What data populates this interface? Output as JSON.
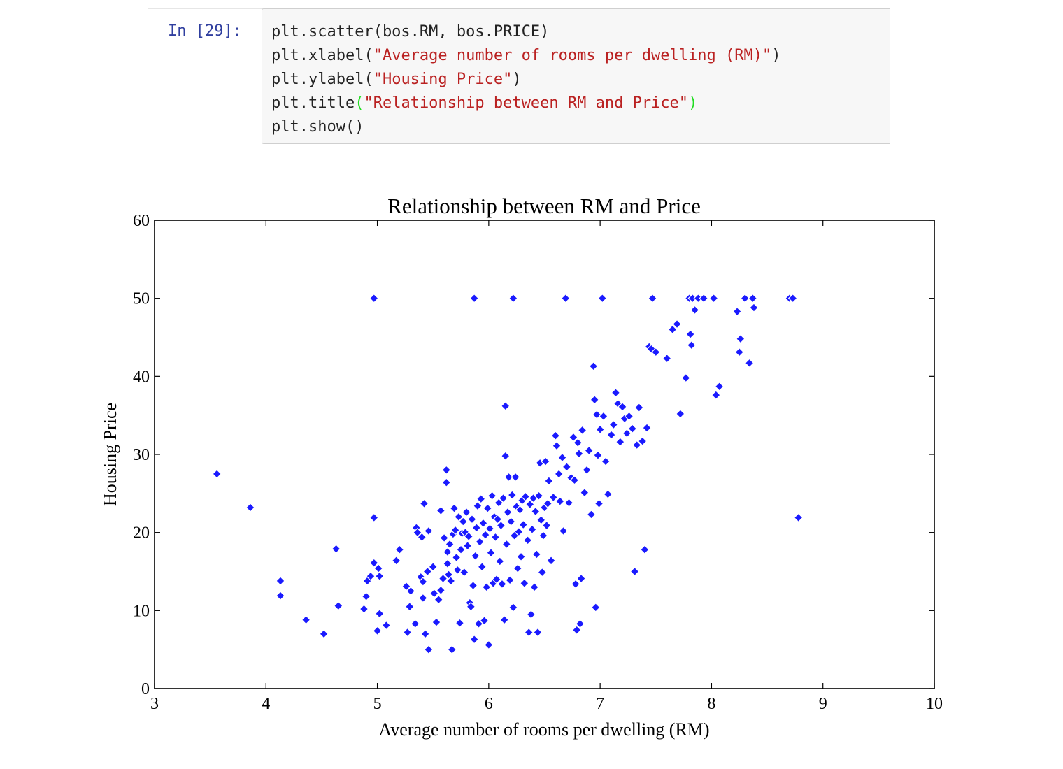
{
  "cell": {
    "prompt": "In [29]:",
    "lines": [
      {
        "plain": "plt.scatter(bos.RM, bos.PRICE)"
      },
      {
        "pre": "plt.xlabel(",
        "str": "\"Average number of rooms per dwelling (RM)\"",
        "post": ")"
      },
      {
        "pre": "plt.ylabel(",
        "str": "\"Housing Price\"",
        "post": ")"
      },
      {
        "pre": "plt.title",
        "open": "(",
        "str": "\"Relationship between RM and Price\"",
        "close": ")"
      },
      {
        "plain": "plt.show()"
      }
    ]
  },
  "colors": {
    "marker": "#1a1aff",
    "marker_edge": "#ffffff",
    "string": "#ba2121",
    "prompt": "#303f9f"
  },
  "chart_data": {
    "type": "scatter",
    "title": "Relationship between RM and Price",
    "xlabel": "Average number of rooms per dwelling (RM)",
    "ylabel": "Housing Price",
    "xlim": [
      3,
      10
    ],
    "ylim": [
      0,
      60
    ],
    "xticks": [
      "3",
      "4",
      "5",
      "6",
      "7",
      "8",
      "9",
      "10"
    ],
    "yticks": [
      "0",
      "10",
      "20",
      "30",
      "40",
      "50",
      "60"
    ],
    "grid": false,
    "points": [
      [
        3.56,
        27.5
      ],
      [
        3.86,
        23.2
      ],
      [
        4.13,
        13.8
      ],
      [
        4.13,
        11.9
      ],
      [
        4.36,
        8.8
      ],
      [
        4.52,
        7.0
      ],
      [
        4.63,
        17.9
      ],
      [
        4.65,
        10.6
      ],
      [
        4.88,
        10.2
      ],
      [
        4.9,
        11.8
      ],
      [
        4.91,
        13.8
      ],
      [
        4.94,
        14.4
      ],
      [
        4.97,
        21.9
      ],
      [
        4.97,
        16.1
      ],
      [
        4.97,
        50.0
      ],
      [
        5.0,
        7.4
      ],
      [
        5.01,
        15.4
      ],
      [
        5.02,
        14.4
      ],
      [
        5.02,
        9.6
      ],
      [
        5.08,
        8.1
      ],
      [
        5.17,
        16.4
      ],
      [
        5.2,
        17.8
      ],
      [
        5.26,
        13.1
      ],
      [
        5.27,
        7.2
      ],
      [
        5.29,
        10.5
      ],
      [
        5.3,
        12.5
      ],
      [
        5.34,
        8.3
      ],
      [
        5.35,
        20.6
      ],
      [
        5.36,
        20.0
      ],
      [
        5.4,
        19.4
      ],
      [
        5.39,
        14.3
      ],
      [
        5.41,
        13.7
      ],
      [
        5.41,
        11.6
      ],
      [
        5.42,
        23.7
      ],
      [
        5.43,
        7.0
      ],
      [
        5.45,
        15.0
      ],
      [
        5.46,
        20.2
      ],
      [
        5.46,
        5.0
      ],
      [
        5.5,
        15.6
      ],
      [
        5.51,
        12.2
      ],
      [
        5.53,
        8.5
      ],
      [
        5.55,
        11.4
      ],
      [
        5.57,
        12.6
      ],
      [
        5.57,
        22.8
      ],
      [
        5.59,
        14.1
      ],
      [
        5.6,
        19.3
      ],
      [
        5.62,
        26.4
      ],
      [
        5.62,
        28.0
      ],
      [
        5.63,
        17.5
      ],
      [
        5.63,
        16.0
      ],
      [
        5.64,
        14.6
      ],
      [
        5.65,
        18.5
      ],
      [
        5.66,
        13.8
      ],
      [
        5.67,
        5.0
      ],
      [
        5.68,
        19.8
      ],
      [
        5.69,
        23.1
      ],
      [
        5.7,
        20.3
      ],
      [
        5.71,
        16.8
      ],
      [
        5.72,
        15.2
      ],
      [
        5.73,
        22.0
      ],
      [
        5.74,
        8.4
      ],
      [
        5.75,
        17.8
      ],
      [
        5.76,
        19.9
      ],
      [
        5.77,
        21.4
      ],
      [
        5.78,
        14.9
      ],
      [
        5.79,
        20.0
      ],
      [
        5.8,
        22.6
      ],
      [
        5.81,
        18.3
      ],
      [
        5.82,
        19.5
      ],
      [
        5.83,
        11.0
      ],
      [
        5.84,
        10.5
      ],
      [
        5.85,
        21.7
      ],
      [
        5.86,
        13.2
      ],
      [
        5.87,
        6.3
      ],
      [
        5.87,
        50.0
      ],
      [
        5.88,
        17.0
      ],
      [
        5.89,
        20.6
      ],
      [
        5.9,
        23.4
      ],
      [
        5.91,
        8.3
      ],
      [
        5.92,
        18.8
      ],
      [
        5.93,
        24.3
      ],
      [
        5.94,
        15.6
      ],
      [
        5.95,
        21.2
      ],
      [
        5.96,
        8.7
      ],
      [
        5.97,
        19.7
      ],
      [
        5.98,
        13.0
      ],
      [
        5.99,
        23.1
      ],
      [
        6.0,
        5.6
      ],
      [
        6.01,
        20.5
      ],
      [
        6.02,
        17.4
      ],
      [
        6.03,
        24.7
      ],
      [
        6.04,
        13.5
      ],
      [
        6.05,
        22.0
      ],
      [
        6.06,
        19.4
      ],
      [
        6.07,
        14.0
      ],
      [
        6.08,
        21.7
      ],
      [
        6.09,
        23.8
      ],
      [
        6.1,
        16.3
      ],
      [
        6.11,
        20.9
      ],
      [
        6.12,
        13.4
      ],
      [
        6.13,
        24.4
      ],
      [
        6.14,
        8.8
      ],
      [
        6.15,
        36.2
      ],
      [
        6.15,
        29.8
      ],
      [
        6.16,
        18.5
      ],
      [
        6.17,
        22.6
      ],
      [
        6.18,
        27.1
      ],
      [
        6.19,
        13.9
      ],
      [
        6.2,
        21.4
      ],
      [
        6.21,
        24.8
      ],
      [
        6.22,
        10.4
      ],
      [
        6.22,
        50.0
      ],
      [
        6.23,
        19.6
      ],
      [
        6.24,
        27.1
      ],
      [
        6.25,
        23.3
      ],
      [
        6.26,
        15.4
      ],
      [
        6.27,
        20.1
      ],
      [
        6.28,
        22.9
      ],
      [
        6.29,
        16.9
      ],
      [
        6.3,
        24.1
      ],
      [
        6.31,
        21.0
      ],
      [
        6.32,
        13.5
      ],
      [
        6.33,
        24.6
      ],
      [
        6.35,
        19.0
      ],
      [
        6.36,
        7.2
      ],
      [
        6.37,
        23.6
      ],
      [
        6.38,
        9.5
      ],
      [
        6.39,
        20.4
      ],
      [
        6.4,
        24.4
      ],
      [
        6.41,
        13.0
      ],
      [
        6.42,
        22.7
      ],
      [
        6.43,
        17.2
      ],
      [
        6.44,
        7.2
      ],
      [
        6.45,
        24.7
      ],
      [
        6.46,
        28.9
      ],
      [
        6.47,
        21.6
      ],
      [
        6.48,
        14.9
      ],
      [
        6.49,
        19.6
      ],
      [
        6.5,
        23.2
      ],
      [
        6.51,
        29.1
      ],
      [
        6.52,
        20.9
      ],
      [
        6.53,
        23.7
      ],
      [
        6.54,
        26.6
      ],
      [
        6.56,
        16.4
      ],
      [
        6.58,
        24.5
      ],
      [
        6.6,
        32.4
      ],
      [
        6.61,
        31.1
      ],
      [
        6.63,
        27.5
      ],
      [
        6.64,
        24.0
      ],
      [
        6.66,
        29.6
      ],
      [
        6.67,
        20.2
      ],
      [
        6.69,
        50.0
      ],
      [
        6.7,
        28.4
      ],
      [
        6.72,
        23.8
      ],
      [
        6.74,
        27.0
      ],
      [
        6.76,
        32.2
      ],
      [
        6.77,
        26.7
      ],
      [
        6.78,
        13.4
      ],
      [
        6.79,
        7.5
      ],
      [
        6.8,
        31.5
      ],
      [
        6.81,
        30.1
      ],
      [
        6.82,
        8.3
      ],
      [
        6.83,
        14.1
      ],
      [
        6.84,
        33.1
      ],
      [
        6.86,
        25.1
      ],
      [
        6.88,
        28.0
      ],
      [
        6.9,
        30.5
      ],
      [
        6.92,
        22.3
      ],
      [
        6.94,
        41.3
      ],
      [
        6.95,
        37.0
      ],
      [
        6.96,
        10.4
      ],
      [
        6.97,
        35.1
      ],
      [
        6.98,
        29.9
      ],
      [
        6.99,
        23.7
      ],
      [
        7.0,
        33.2
      ],
      [
        7.02,
        50.0
      ],
      [
        7.03,
        34.9
      ],
      [
        7.05,
        29.1
      ],
      [
        7.07,
        24.9
      ],
      [
        7.1,
        32.5
      ],
      [
        7.12,
        33.8
      ],
      [
        7.14,
        37.9
      ],
      [
        7.16,
        36.5
      ],
      [
        7.18,
        31.6
      ],
      [
        7.2,
        36.1
      ],
      [
        7.22,
        34.6
      ],
      [
        7.24,
        32.7
      ],
      [
        7.26,
        34.9
      ],
      [
        7.29,
        33.3
      ],
      [
        7.31,
        15.0
      ],
      [
        7.33,
        31.2
      ],
      [
        7.35,
        36.0
      ],
      [
        7.38,
        31.7
      ],
      [
        7.4,
        17.8
      ],
      [
        7.42,
        33.4
      ],
      [
        7.44,
        43.8
      ],
      [
        7.46,
        43.5
      ],
      [
        7.47,
        50.0
      ],
      [
        7.5,
        43.1
      ],
      [
        7.6,
        42.3
      ],
      [
        7.65,
        46.0
      ],
      [
        7.69,
        46.7
      ],
      [
        7.72,
        35.2
      ],
      [
        7.77,
        39.8
      ],
      [
        7.8,
        50.0
      ],
      [
        7.81,
        45.4
      ],
      [
        7.82,
        44.0
      ],
      [
        7.83,
        50.0
      ],
      [
        7.85,
        48.5
      ],
      [
        7.88,
        50.0
      ],
      [
        7.93,
        50.0
      ],
      [
        8.02,
        50.0
      ],
      [
        8.04,
        37.6
      ],
      [
        8.07,
        38.7
      ],
      [
        8.23,
        48.3
      ],
      [
        8.25,
        43.1
      ],
      [
        8.26,
        44.8
      ],
      [
        8.3,
        50.0
      ],
      [
        8.34,
        41.7
      ],
      [
        8.37,
        50.0
      ],
      [
        8.38,
        48.8
      ],
      [
        8.7,
        50.0
      ],
      [
        8.73,
        50.0
      ],
      [
        8.78,
        21.9
      ]
    ]
  }
}
